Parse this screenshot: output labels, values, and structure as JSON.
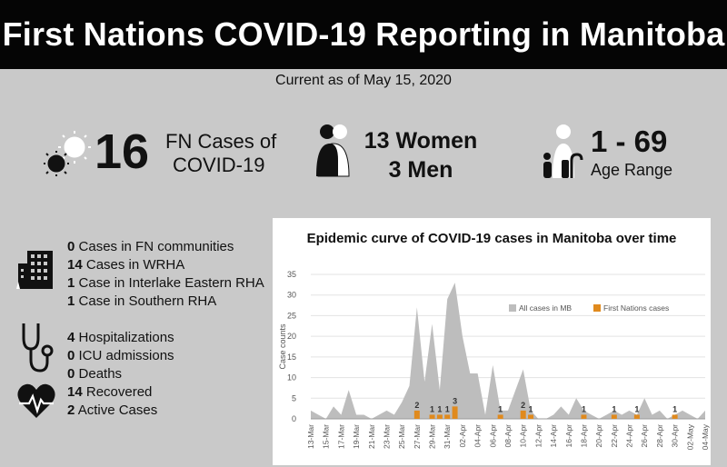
{
  "header": {
    "title": "First Nations COVID-19 Reporting in Manitoba"
  },
  "subtitle": "Current as of May 15, 2020",
  "stats": {
    "cases_number": "16",
    "cases_label_line1": "FN Cases of",
    "cases_label_line2": "COVID-19",
    "women": "13 Women",
    "men": "3 Men",
    "age_range": "1 - 69",
    "age_label": "Age Range"
  },
  "location_list": [
    {
      "count": "0",
      "text": "Cases in FN communities"
    },
    {
      "count": "14",
      "text": "Cases in WRHA"
    },
    {
      "count": "1",
      "text": "Case in Interlake Eastern RHA"
    },
    {
      "count": "1",
      "text": "Case in Southern RHA"
    }
  ],
  "health_list": [
    {
      "count": "4",
      "text": "Hospitalizations"
    },
    {
      "count": "0",
      "text": "ICU admissions"
    },
    {
      "count": "0",
      "text": "Deaths"
    },
    {
      "count": "14",
      "text": "Recovered"
    },
    {
      "count": "2",
      "text": "Active Cases"
    }
  ],
  "icons": {
    "virus": "virus-icon",
    "women_men": "woman-man-icon",
    "age": "age-family-icon",
    "building": "building-icon",
    "stethoscope": "stethoscope-icon",
    "heart": "heartbeat-icon"
  },
  "colors": {
    "header_bg": "#050505",
    "background": "#c9c9c9",
    "area": "#bdbdbd",
    "bars": "#e08a1e"
  },
  "chart_data": {
    "type": "area",
    "title": "Epidemic curve of COVID-19 cases in Manitoba over time",
    "ylabel": "Case counts",
    "ylim": [
      0,
      35
    ],
    "yticks": [
      0,
      5,
      10,
      15,
      20,
      25,
      30,
      35
    ],
    "x": [
      "13-Mar",
      "14-Mar",
      "15-Mar",
      "16-Mar",
      "17-Mar",
      "18-Mar",
      "19-Mar",
      "20-Mar",
      "21-Mar",
      "22-Mar",
      "23-Mar",
      "24-Mar",
      "25-Mar",
      "26-Mar",
      "27-Mar",
      "28-Mar",
      "29-Mar",
      "30-Mar",
      "31-Mar",
      "01-Apr",
      "02-Apr",
      "03-Apr",
      "04-Apr",
      "05-Apr",
      "06-Apr",
      "07-Apr",
      "08-Apr",
      "09-Apr",
      "10-Apr",
      "11-Apr",
      "12-Apr",
      "13-Apr",
      "14-Apr",
      "15-Apr",
      "16-Apr",
      "17-Apr",
      "18-Apr",
      "19-Apr",
      "20-Apr",
      "21-Apr",
      "22-Apr",
      "23-Apr",
      "24-Apr",
      "25-Apr",
      "26-Apr",
      "27-Apr",
      "28-Apr",
      "29-Apr",
      "30-Apr",
      "01-May",
      "02-May",
      "03-May",
      "04-May"
    ],
    "tick_labels": [
      "13-Mar",
      "15-Mar",
      "17-Mar",
      "19-Mar",
      "21-Mar",
      "23-Mar",
      "25-Mar",
      "27-Mar",
      "29-Mar",
      "31-Mar",
      "02-Apr",
      "04-Apr",
      "06-Apr",
      "08-Apr",
      "10-Apr",
      "12-Apr",
      "14-Apr",
      "16-Apr",
      "18-Apr",
      "20-Apr",
      "22-Apr",
      "24-Apr",
      "26-Apr",
      "28-Apr",
      "30-Apr",
      "02-May",
      "04-May"
    ],
    "series": [
      {
        "name": "All cases in MB",
        "values": [
          2,
          1,
          0,
          3,
          1,
          7,
          1,
          1,
          0,
          1,
          2,
          1,
          4,
          8,
          27,
          9,
          23,
          7,
          29,
          33,
          20,
          11,
          11,
          1,
          13,
          2,
          2,
          7,
          12,
          2,
          0,
          0,
          1,
          3,
          1,
          5,
          2,
          1,
          0,
          1,
          2,
          1,
          2,
          1,
          5,
          1,
          2,
          0,
          1,
          2,
          1,
          0,
          2
        ]
      },
      {
        "name": "First Nations cases",
        "values": [
          0,
          0,
          0,
          0,
          0,
          0,
          0,
          0,
          0,
          0,
          0,
          0,
          0,
          0,
          2,
          0,
          1,
          1,
          1,
          3,
          0,
          0,
          0,
          0,
          0,
          1,
          0,
          0,
          2,
          1,
          0,
          0,
          0,
          0,
          0,
          0,
          1,
          0,
          0,
          0,
          1,
          0,
          0,
          1,
          0,
          0,
          0,
          0,
          1,
          0,
          0,
          0,
          0
        ]
      }
    ],
    "legend": "top-right",
    "grid": true
  }
}
